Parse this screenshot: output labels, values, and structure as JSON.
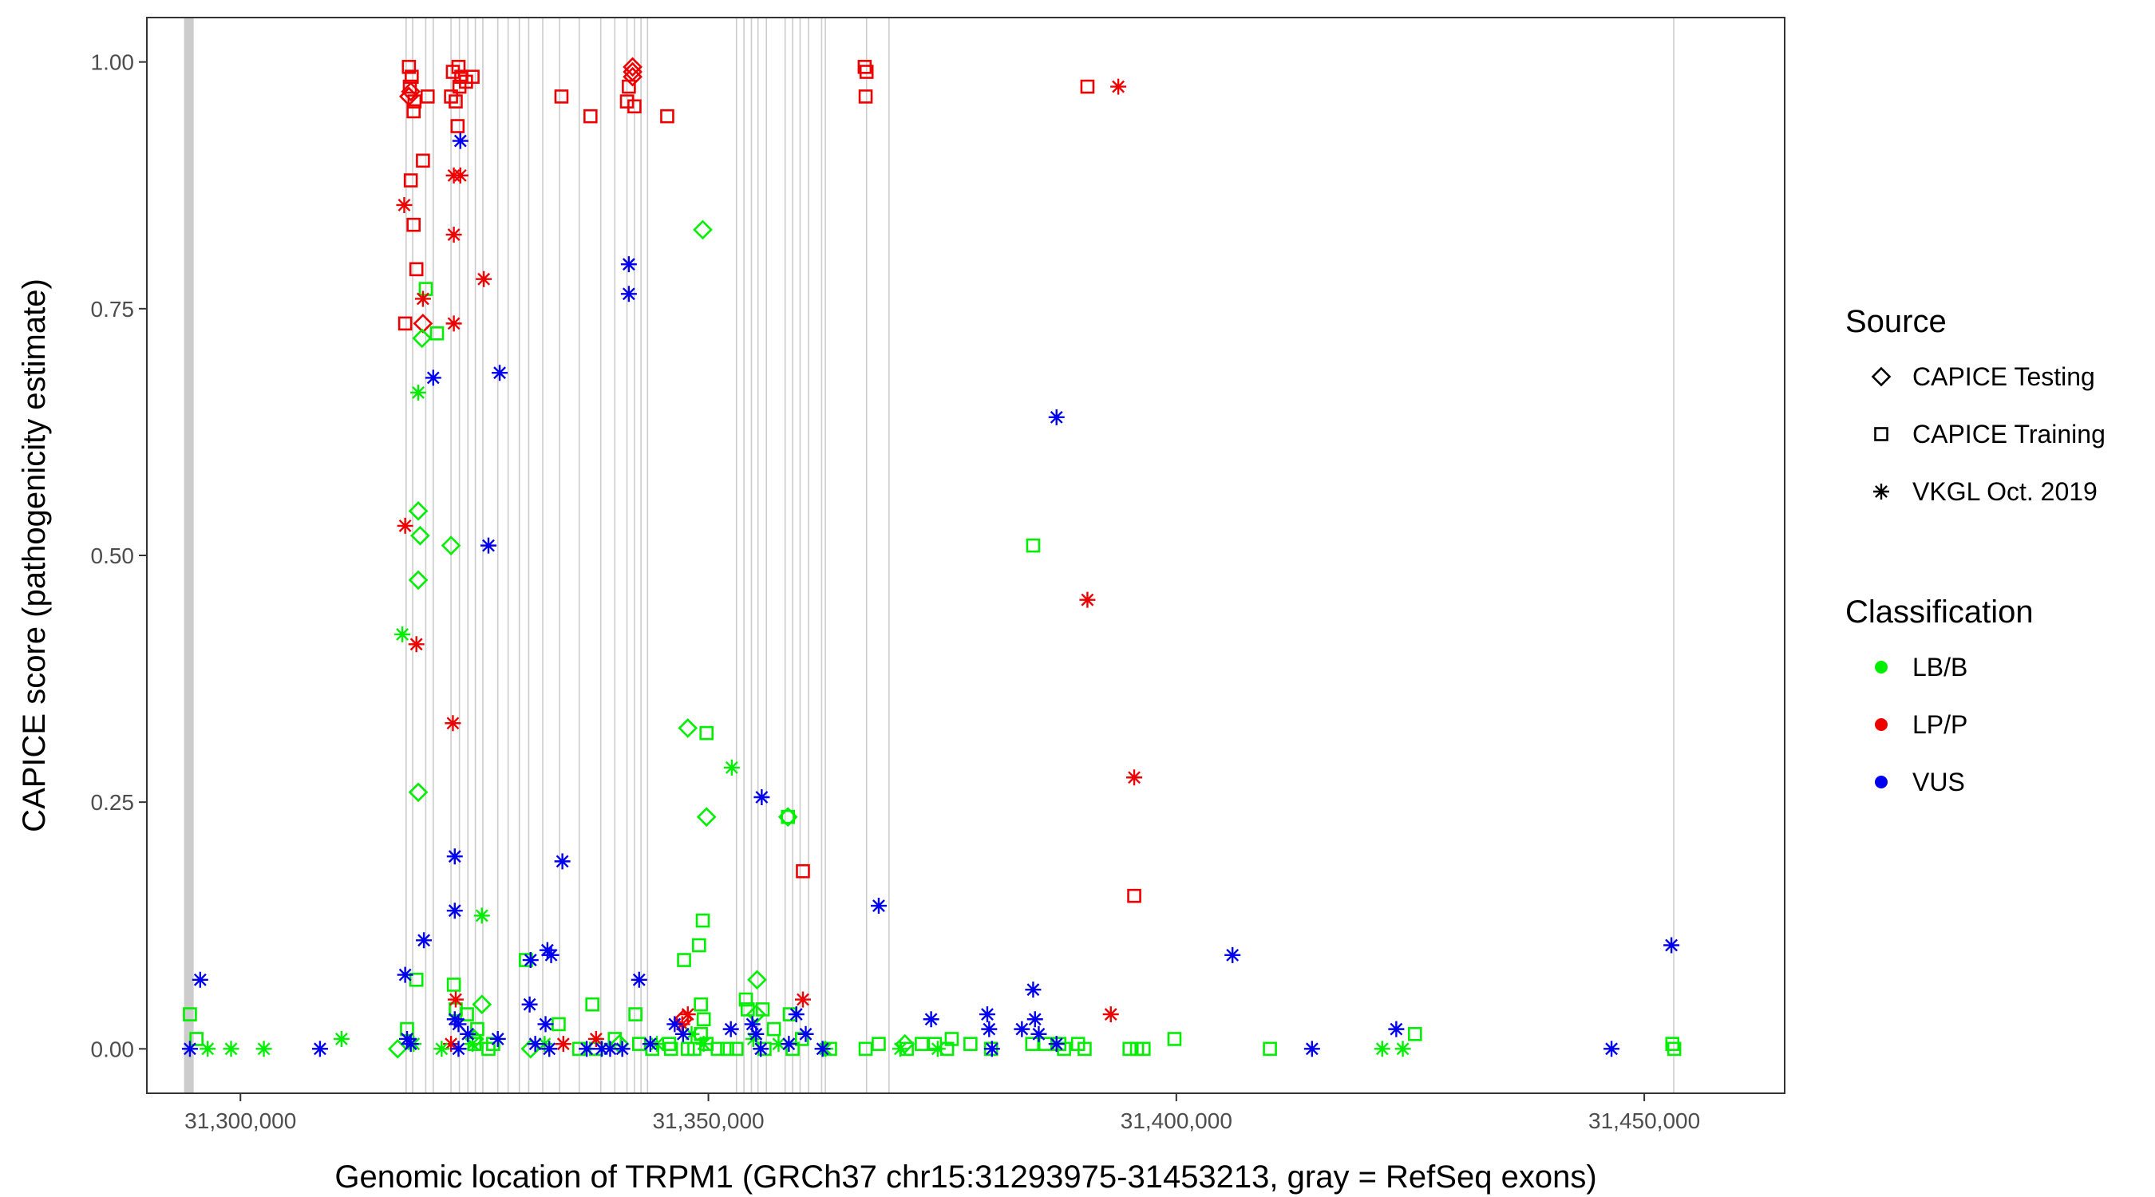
{
  "chart_data": {
    "type": "scatter",
    "xlabel": "Genomic location of TRPM1 (GRCh37 chr15:31293975-31453213, gray = RefSeq exons)",
    "ylabel": "CAPICE score (pathogenicity estimate)",
    "xlim": [
      31290000,
      31465000
    ],
    "ylim": [
      -0.045,
      1.045
    ],
    "x_ticks": [
      31300000,
      31350000,
      31400000,
      31450000
    ],
    "x_tick_labels": [
      "31,300,000",
      "31,350,000",
      "31,400,000",
      "31,450,000"
    ],
    "y_ticks": [
      0.0,
      0.25,
      0.5,
      0.75,
      1.0
    ],
    "y_tick_labels": [
      "0.00",
      "0.25",
      "0.50",
      "0.75",
      "1.00"
    ],
    "grid": false,
    "exons": [
      [
        31293975,
        31295000
      ],
      31317700,
      31318400,
      31319800,
      31320600,
      31322500,
      31323400,
      31324300,
      31325100,
      31325900,
      31327500,
      31328600,
      31329800,
      31330800,
      31332300,
      31334100,
      31336200,
      31338500,
      31340000,
      31341300,
      31342100,
      31342800,
      31343500,
      31353000,
      31353800,
      31354600,
      31355300,
      31356200,
      31358200,
      31359000,
      31359800,
      31360700,
      31362100,
      31362500,
      31366900,
      31369300,
      31453150
    ],
    "exon_color": "#cccccc",
    "legend": {
      "source_title": "Source",
      "source_items": [
        {
          "label": "CAPICE Testing",
          "shape": "diamond"
        },
        {
          "label": "CAPICE Training",
          "shape": "square"
        },
        {
          "label": "VKGL Oct. 2019",
          "shape": "asterisk"
        }
      ],
      "class_title": "Classification",
      "class_items": [
        {
          "label": "LB/B",
          "color": "#00ee00"
        },
        {
          "label": "LP/P",
          "color": "#ee0000"
        },
        {
          "label": "VUS",
          "color": "#0000ee"
        }
      ]
    },
    "series": [
      {
        "source": "CAPICE Testing",
        "classification": "LP/P",
        "points": [
          [
            31318000,
            0.965
          ],
          [
            31319500,
            0.735
          ],
          [
            31341900,
            0.995
          ],
          [
            31341900,
            0.99
          ],
          [
            31318200,
            0.97
          ],
          [
            31341900,
            0.985
          ],
          [
            31347300,
            0.03
          ]
        ]
      },
      {
        "source": "CAPICE Testing",
        "classification": "LB/B",
        "points": [
          [
            31349400,
            0.83
          ],
          [
            31319400,
            0.72
          ],
          [
            31319000,
            0.545
          ],
          [
            31319200,
            0.52
          ],
          [
            31322500,
            0.51
          ],
          [
            31319000,
            0.475
          ],
          [
            31347800,
            0.325
          ],
          [
            31349800,
            0.235
          ],
          [
            31358500,
            0.235
          ],
          [
            31319000,
            0.26
          ],
          [
            31325800,
            0.045
          ],
          [
            31355200,
            0.07
          ],
          [
            31355100,
            0.035
          ],
          [
            31325000,
            0.01
          ],
          [
            31340500,
            0.005
          ],
          [
            31331000,
            0.0
          ],
          [
            31316800,
            0.0
          ],
          [
            31371000,
            0.005
          ]
        ]
      },
      {
        "source": "CAPICE Training",
        "classification": "LP/P",
        "points": [
          [
            31318000,
            0.995
          ],
          [
            31318300,
            0.985
          ],
          [
            31318100,
            0.975
          ],
          [
            31318600,
            0.96
          ],
          [
            31318500,
            0.95
          ],
          [
            31320000,
            0.965
          ],
          [
            31322500,
            0.965
          ],
          [
            31323000,
            0.96
          ],
          [
            31323300,
            0.995
          ],
          [
            31323600,
            0.985
          ],
          [
            31323400,
            0.975
          ],
          [
            31324100,
            0.98
          ],
          [
            31322700,
            0.99
          ],
          [
            31324800,
            0.985
          ],
          [
            31323200,
            0.935
          ],
          [
            31318200,
            0.88
          ],
          [
            31319500,
            0.9
          ],
          [
            31318500,
            0.835
          ],
          [
            31318800,
            0.79
          ],
          [
            31317600,
            0.735
          ],
          [
            31341500,
            0.975
          ],
          [
            31341300,
            0.96
          ],
          [
            31342100,
            0.955
          ],
          [
            31334300,
            0.965
          ],
          [
            31337400,
            0.945
          ],
          [
            31345600,
            0.945
          ],
          [
            31366700,
            0.995
          ],
          [
            31366900,
            0.99
          ],
          [
            31366800,
            0.965
          ],
          [
            31390500,
            0.975
          ],
          [
            31360100,
            0.18
          ],
          [
            31395500,
            0.155
          ]
        ]
      },
      {
        "source": "CAPICE Training",
        "classification": "LB/B",
        "points": [
          [
            31294600,
            0.035
          ],
          [
            31295300,
            0.01
          ],
          [
            31318800,
            0.07
          ],
          [
            31319800,
            0.77
          ],
          [
            31321000,
            0.725
          ],
          [
            31317800,
            0.02
          ],
          [
            31322800,
            0.065
          ],
          [
            31323000,
            0.04
          ],
          [
            31324200,
            0.035
          ],
          [
            31325300,
            0.02
          ],
          [
            31325000,
            0.005
          ],
          [
            31326500,
            0.0
          ],
          [
            31327000,
            0.005
          ],
          [
            31330500,
            0.09
          ],
          [
            31334000,
            0.025
          ],
          [
            31336200,
            0.0
          ],
          [
            31337600,
            0.045
          ],
          [
            31342200,
            0.035
          ],
          [
            31342600,
            0.005
          ],
          [
            31344000,
            0.0
          ],
          [
            31345800,
            0.005
          ],
          [
            31347400,
            0.09
          ],
          [
            31349000,
            0.105
          ],
          [
            31349400,
            0.13
          ],
          [
            31349800,
            0.32
          ],
          [
            31349200,
            0.045
          ],
          [
            31349500,
            0.03
          ],
          [
            31349200,
            0.015
          ],
          [
            31349800,
            0.005
          ],
          [
            31353000,
            0.0
          ],
          [
            31354000,
            0.05
          ],
          [
            31354200,
            0.04
          ],
          [
            31355800,
            0.04
          ],
          [
            31357000,
            0.02
          ],
          [
            31358500,
            0.235
          ],
          [
            31358700,
            0.035
          ],
          [
            31359000,
            0.0
          ],
          [
            31360000,
            0.01
          ],
          [
            31363000,
            0.0
          ],
          [
            31366800,
            0.0
          ],
          [
            31368200,
            0.005
          ],
          [
            31371200,
            0.0
          ],
          [
            31372800,
            0.005
          ],
          [
            31374200,
            0.005
          ],
          [
            31375500,
            0.0
          ],
          [
            31376000,
            0.01
          ],
          [
            31378000,
            0.005
          ],
          [
            31380200,
            0.0
          ],
          [
            31384700,
            0.51
          ],
          [
            31384600,
            0.005
          ],
          [
            31386000,
            0.005
          ],
          [
            31387500,
            0.005
          ],
          [
            31388000,
            0.0
          ],
          [
            31389500,
            0.005
          ],
          [
            31390200,
            0.0
          ],
          [
            31395000,
            0.0
          ],
          [
            31395800,
            0.0
          ],
          [
            31396500,
            0.0
          ],
          [
            31399800,
            0.01
          ],
          [
            31410000,
            0.0
          ],
          [
            31425500,
            0.015
          ],
          [
            31453000,
            0.005
          ],
          [
            31453200,
            0.0
          ],
          [
            31340000,
            0.01
          ],
          [
            31338000,
            0.0
          ],
          [
            31346000,
            0.0
          ],
          [
            31347800,
            0.0
          ],
          [
            31348500,
            0.0
          ],
          [
            31351000,
            0.0
          ],
          [
            31352000,
            0.0
          ],
          [
            31356000,
            0.0
          ]
        ]
      },
      {
        "source": "VKGL Oct. 2019",
        "classification": "LP/P",
        "points": [
          [
            31393800,
            0.975
          ],
          [
            31317500,
            0.855
          ],
          [
            31322800,
            0.885
          ],
          [
            31323500,
            0.885
          ],
          [
            31319500,
            0.76
          ],
          [
            31322800,
            0.825
          ],
          [
            31326000,
            0.78
          ],
          [
            31322800,
            0.735
          ],
          [
            31317600,
            0.53
          ],
          [
            31318800,
            0.41
          ],
          [
            31322700,
            0.33
          ],
          [
            31323000,
            0.05
          ],
          [
            31390500,
            0.455
          ],
          [
            31395500,
            0.275
          ],
          [
            31393000,
            0.035
          ],
          [
            31360100,
            0.05
          ],
          [
            31347800,
            0.035
          ],
          [
            31347200,
            0.025
          ],
          [
            31334500,
            0.005
          ],
          [
            31338000,
            0.01
          ],
          [
            31322500,
            0.005
          ]
        ]
      },
      {
        "source": "VKGL Oct. 2019",
        "classification": "LB/B",
        "points": [
          [
            31319000,
            0.665
          ],
          [
            31317300,
            0.42
          ],
          [
            31352500,
            0.285
          ],
          [
            31325800,
            0.135
          ],
          [
            31310800,
            0.01
          ],
          [
            31302500,
            0.0
          ],
          [
            31299000,
            0.0
          ],
          [
            31296500,
            0.0
          ],
          [
            31318500,
            0.005
          ],
          [
            31321500,
            0.0
          ],
          [
            31324800,
            0.005
          ],
          [
            31332500,
            0.005
          ],
          [
            31344500,
            0.005
          ],
          [
            31349500,
            0.005
          ],
          [
            31354800,
            0.01
          ],
          [
            31357500,
            0.005
          ],
          [
            31362500,
            0.0
          ],
          [
            31370500,
            0.0
          ],
          [
            31374500,
            0.0
          ],
          [
            31422000,
            0.0
          ],
          [
            31424200,
            0.0
          ],
          [
            31348200,
            0.015
          ]
        ]
      },
      {
        "source": "VKGL Oct. 2019",
        "classification": "VUS",
        "points": [
          [
            31295700,
            0.07
          ],
          [
            31294600,
            0.0
          ],
          [
            31308500,
            0.0
          ],
          [
            31323500,
            0.92
          ],
          [
            31341500,
            0.795
          ],
          [
            31341500,
            0.765
          ],
          [
            31320600,
            0.68
          ],
          [
            31327700,
            0.685
          ],
          [
            31387200,
            0.64
          ],
          [
            31326500,
            0.51
          ],
          [
            31322900,
            0.195
          ],
          [
            31322900,
            0.14
          ],
          [
            31334400,
            0.19
          ],
          [
            31355700,
            0.255
          ],
          [
            31368200,
            0.145
          ],
          [
            31319600,
            0.11
          ],
          [
            31332800,
            0.1
          ],
          [
            31333200,
            0.095
          ],
          [
            31331000,
            0.09
          ],
          [
            31317600,
            0.075
          ],
          [
            31342600,
            0.07
          ],
          [
            31406000,
            0.095
          ],
          [
            31452900,
            0.105
          ],
          [
            31322900,
            0.03
          ],
          [
            31323300,
            0.025
          ],
          [
            31324300,
            0.015
          ],
          [
            31317800,
            0.01
          ],
          [
            31318200,
            0.005
          ],
          [
            31323300,
            0.0
          ],
          [
            31327500,
            0.01
          ],
          [
            31330900,
            0.045
          ],
          [
            31332600,
            0.025
          ],
          [
            31333000,
            0.0
          ],
          [
            31337000,
            0.0
          ],
          [
            31340800,
            0.0
          ],
          [
            31343800,
            0.005
          ],
          [
            31346400,
            0.025
          ],
          [
            31347300,
            0.015
          ],
          [
            31352400,
            0.02
          ],
          [
            31354700,
            0.025
          ],
          [
            31355100,
            0.015
          ],
          [
            31355600,
            0.0
          ],
          [
            31358600,
            0.005
          ],
          [
            31359400,
            0.035
          ],
          [
            31360400,
            0.015
          ],
          [
            31362200,
            0.0
          ],
          [
            31373800,
            0.03
          ],
          [
            31379800,
            0.035
          ],
          [
            31380000,
            0.02
          ],
          [
            31380300,
            0.0
          ],
          [
            31383500,
            0.02
          ],
          [
            31384700,
            0.06
          ],
          [
            31384900,
            0.03
          ],
          [
            31385300,
            0.015
          ],
          [
            31387200,
            0.005
          ],
          [
            31414500,
            0.0
          ],
          [
            31423500,
            0.02
          ],
          [
            31446500,
            0.0
          ],
          [
            31331500,
            0.005
          ],
          [
            31339500,
            0.0
          ],
          [
            31338600,
            0.0
          ]
        ]
      }
    ]
  }
}
